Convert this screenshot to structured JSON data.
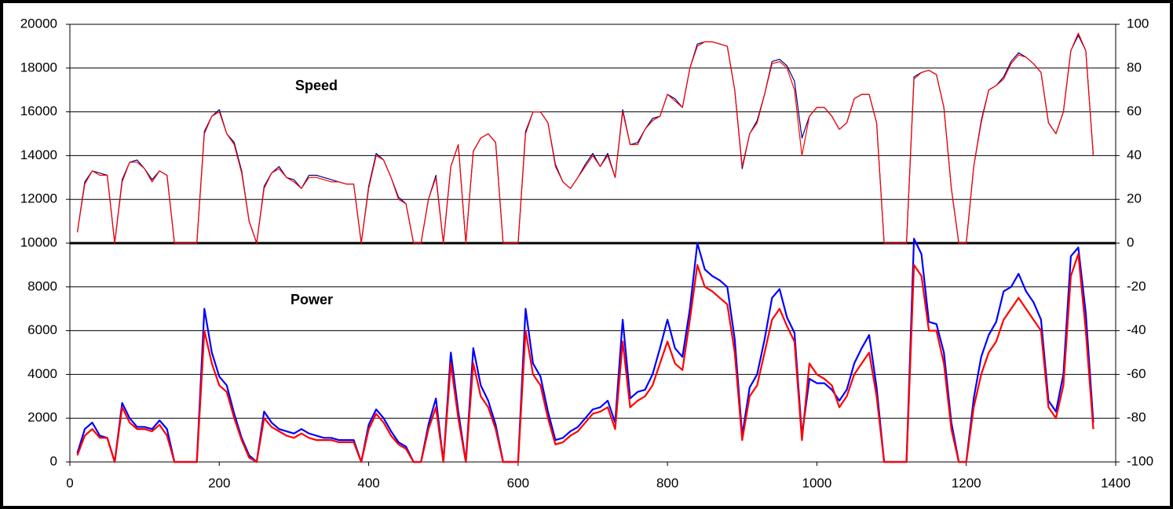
{
  "chart_data": {
    "type": "line",
    "annotations": [
      "Speed",
      "Power"
    ],
    "x": [
      10,
      20,
      30,
      40,
      50,
      60,
      70,
      80,
      90,
      100,
      110,
      120,
      130,
      140,
      150,
      160,
      170,
      180,
      190,
      200,
      210,
      220,
      230,
      240,
      250,
      260,
      270,
      280,
      290,
      300,
      310,
      320,
      330,
      340,
      350,
      360,
      370,
      380,
      390,
      400,
      410,
      420,
      430,
      440,
      450,
      460,
      470,
      480,
      490,
      500,
      510,
      520,
      530,
      540,
      550,
      560,
      570,
      580,
      590,
      600,
      610,
      620,
      630,
      640,
      650,
      660,
      670,
      680,
      690,
      700,
      710,
      720,
      730,
      740,
      750,
      760,
      770,
      780,
      790,
      800,
      810,
      820,
      830,
      840,
      850,
      860,
      870,
      880,
      890,
      900,
      910,
      920,
      930,
      940,
      950,
      960,
      970,
      980,
      990,
      1000,
      1010,
      1020,
      1030,
      1040,
      1050,
      1060,
      1070,
      1080,
      1090,
      1100,
      1110,
      1120,
      1130,
      1140,
      1150,
      1160,
      1170,
      1180,
      1190,
      1200,
      1210,
      1220,
      1230,
      1240,
      1250,
      1260,
      1270,
      1280,
      1290,
      1300,
      1310,
      1320,
      1330,
      1340,
      1350,
      1360,
      1370
    ],
    "series": [
      {
        "color": "#0000ff",
        "axis": "y",
        "values": [
          400,
          1500,
          1800,
          1200,
          1100,
          0,
          2700,
          2000,
          1600,
          1600,
          1500,
          1900,
          1500,
          0,
          0,
          0,
          0,
          7000,
          5000,
          3900,
          3500,
          2200,
          1100,
          300,
          0,
          2300,
          1800,
          1500,
          1400,
          1300,
          1500,
          1300,
          1200,
          1100,
          1100,
          1000,
          1000,
          1000,
          0,
          1700,
          2400,
          2000,
          1400,
          900,
          700,
          0,
          0,
          1700,
          2900,
          0,
          5000,
          2300,
          0,
          5200,
          3500,
          2800,
          1700,
          0,
          0,
          0,
          7000,
          4500,
          3900,
          2300,
          1000,
          1100,
          1400,
          1600,
          2000,
          2400,
          2500,
          2800,
          1800,
          6500,
          2900,
          3200,
          3300,
          4000,
          5200,
          6500,
          5200,
          4800,
          7000,
          10000,
          8800,
          8500,
          8300,
          8000,
          5600,
          1200,
          3400,
          4000,
          5600,
          7500,
          7900,
          6600,
          5900,
          1200,
          3800,
          3600,
          3600,
          3300,
          2800,
          3300,
          4500,
          5200,
          5800,
          3400,
          0,
          0,
          0,
          0,
          10200,
          9500,
          6400,
          6300,
          5000,
          1800,
          0,
          0,
          2900,
          4800,
          5800,
          6400,
          7800,
          8000,
          8600,
          7800,
          7300,
          6500,
          2800,
          2300,
          4000,
          9400,
          9800,
          6800,
          1800
        ]
      },
      {
        "color": "#ff0000",
        "axis": "y",
        "values": [
          300,
          1200,
          1500,
          1100,
          1100,
          0,
          2500,
          1800,
          1500,
          1500,
          1400,
          1700,
          1200,
          0,
          0,
          0,
          0,
          6000,
          4500,
          3500,
          3200,
          2000,
          1000,
          200,
          0,
          2000,
          1600,
          1400,
          1200,
          1100,
          1300,
          1100,
          1000,
          1000,
          1000,
          900,
          900,
          900,
          0,
          1500,
          2200,
          1800,
          1200,
          800,
          600,
          0,
          0,
          1500,
          2500,
          0,
          4500,
          2000,
          0,
          4500,
          3000,
          2500,
          1500,
          0,
          0,
          0,
          6000,
          4000,
          3500,
          2000,
          800,
          900,
          1200,
          1400,
          1800,
          2200,
          2300,
          2500,
          1500,
          5500,
          2500,
          2800,
          3000,
          3500,
          4500,
          5500,
          4500,
          4200,
          6500,
          9000,
          8000,
          7800,
          7500,
          7200,
          5000,
          1000,
          3000,
          3500,
          5000,
          6500,
          7000,
          6200,
          5500,
          1000,
          4500,
          4000,
          3800,
          3500,
          2500,
          3000,
          4000,
          4500,
          5000,
          3000,
          0,
          0,
          0,
          0,
          9000,
          8500,
          6000,
          6000,
          4500,
          1500,
          0,
          0,
          2500,
          4000,
          5000,
          5500,
          6500,
          7000,
          7500,
          7000,
          6500,
          6000,
          2500,
          2000,
          3500,
          8500,
          9500,
          6000,
          1500
        ]
      },
      {
        "color": "#000080",
        "axis": "y2",
        "values": [
          5,
          28,
          33,
          32,
          31,
          0,
          29,
          37,
          38,
          34,
          29,
          33,
          31,
          0,
          0,
          0,
          0,
          51,
          58,
          61,
          50,
          46,
          33,
          10,
          0,
          26,
          32,
          35,
          30,
          29,
          25,
          31,
          31,
          30,
          29,
          28,
          27,
          27,
          0,
          26,
          41,
          38,
          30,
          21,
          18,
          0,
          0,
          20,
          31,
          0,
          35,
          45,
          0,
          42,
          48,
          50,
          46,
          0,
          0,
          0,
          51,
          60,
          60,
          55,
          36,
          28,
          25,
          30,
          36,
          41,
          35,
          41,
          30,
          61,
          45,
          46,
          52,
          57,
          58,
          68,
          66,
          62,
          80,
          91,
          92,
          92,
          91,
          90,
          70,
          34,
          50,
          56,
          68,
          83,
          84,
          81,
          74,
          48,
          58,
          62,
          62,
          58,
          52,
          55,
          66,
          68,
          68,
          55,
          0,
          0,
          0,
          0,
          76,
          78,
          79,
          77,
          62,
          25,
          0,
          0,
          35,
          56,
          70,
          72,
          76,
          83,
          87,
          85,
          82,
          78,
          55,
          50,
          60,
          88,
          95,
          88,
          40
        ]
      },
      {
        "color": "#ff0000",
        "axis": "y2",
        "values": [
          5,
          27,
          33,
          31,
          31,
          0,
          28,
          37,
          37,
          34,
          28,
          33,
          31,
          0,
          0,
          0,
          0,
          50,
          58,
          60,
          50,
          45,
          32,
          10,
          0,
          25,
          32,
          34,
          30,
          28,
          25,
          30,
          30,
          29,
          28,
          28,
          27,
          27,
          0,
          25,
          40,
          38,
          30,
          20,
          18,
          0,
          0,
          20,
          30,
          0,
          35,
          45,
          0,
          42,
          48,
          50,
          46,
          0,
          0,
          0,
          50,
          60,
          60,
          55,
          35,
          28,
          25,
          30,
          35,
          40,
          35,
          40,
          30,
          60,
          45,
          45,
          52,
          56,
          58,
          68,
          65,
          62,
          80,
          90,
          92,
          92,
          91,
          90,
          70,
          35,
          50,
          55,
          68,
          82,
          83,
          80,
          70,
          40,
          58,
          62,
          62,
          58,
          52,
          55,
          66,
          68,
          68,
          55,
          0,
          0,
          0,
          0,
          75,
          78,
          79,
          77,
          62,
          25,
          0,
          0,
          35,
          55,
          70,
          72,
          75,
          82,
          86,
          85,
          82,
          78,
          55,
          50,
          60,
          88,
          96,
          88,
          40
        ]
      }
    ],
    "xlim": [
      0,
      1400
    ],
    "xticks": [
      0,
      200,
      400,
      600,
      800,
      1000,
      1200,
      1400
    ],
    "ylim": [
      0,
      20000
    ],
    "yticks": [
      0,
      2000,
      4000,
      6000,
      8000,
      10000,
      12000,
      14000,
      16000,
      18000,
      20000
    ],
    "y2lim": [
      -100,
      100
    ],
    "y2ticks": [
      -100,
      -80,
      -60,
      -40,
      -20,
      0,
      20,
      40,
      60,
      80,
      100
    ],
    "grid": true
  }
}
